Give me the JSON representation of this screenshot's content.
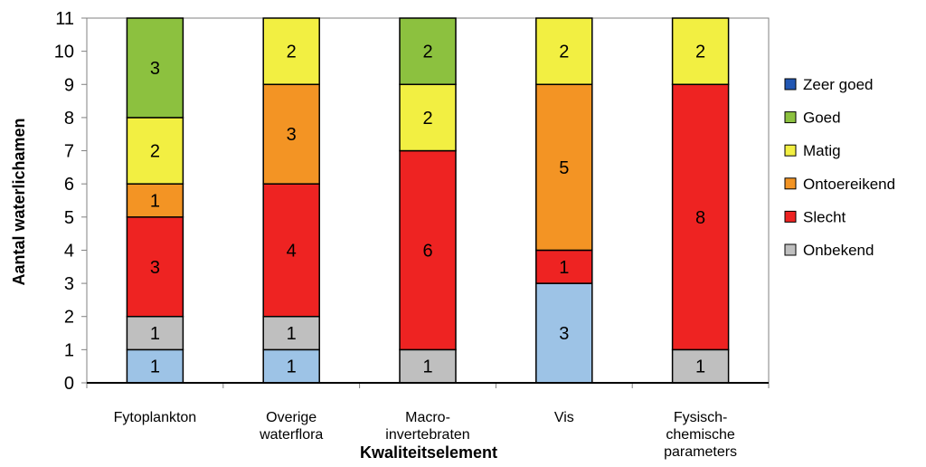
{
  "chart_data": {
    "type": "bar",
    "stacked": true,
    "xlabel": "Kwaliteitselement",
    "ylabel": "Aantal waterlichamen",
    "ylim": [
      0,
      11
    ],
    "yticks": [
      "0",
      "1",
      "2",
      "3",
      "4",
      "5",
      "6",
      "7",
      "8",
      "9",
      "10",
      "11"
    ],
    "categories": [
      [
        "Fytoplankton"
      ],
      [
        "Overige",
        "waterflora"
      ],
      [
        "Macro-",
        "invertebraten"
      ],
      [
        "Vis"
      ],
      [
        "Fysisch-",
        "chemische",
        "parameters"
      ]
    ],
    "stack_order": [
      "Onbekend-blue",
      "Onbekend",
      "Slecht",
      "Ontoereikend",
      "Matig",
      "Goed",
      "Zeer goed"
    ],
    "series": [
      {
        "key": "Onbekend-blue",
        "color": "#9dc3e6",
        "values": [
          1,
          1,
          0,
          3,
          0
        ]
      },
      {
        "key": "Onbekend",
        "name": "Onbekend",
        "color": "#bfbfbf",
        "values": [
          1,
          1,
          1,
          0,
          1
        ]
      },
      {
        "key": "Slecht",
        "name": "Slecht",
        "color": "#ee2322",
        "values": [
          3,
          4,
          6,
          1,
          8
        ]
      },
      {
        "key": "Ontoereikend",
        "name": "Ontoereikend",
        "color": "#f39424",
        "values": [
          1,
          3,
          0,
          5,
          0
        ]
      },
      {
        "key": "Matig",
        "name": "Matig",
        "color": "#f2ef42",
        "values": [
          2,
          2,
          2,
          2,
          2
        ]
      },
      {
        "key": "Goed",
        "name": "Goed",
        "color": "#8cc13f",
        "values": [
          3,
          0,
          2,
          0,
          0
        ]
      },
      {
        "key": "Zeer goed",
        "name": "Zeer goed",
        "color": "#2257b3",
        "values": [
          0,
          0,
          0,
          0,
          0
        ]
      }
    ],
    "legend_order": [
      "Zeer goed",
      "Goed",
      "Matig",
      "Ontoereikend",
      "Slecht",
      "Onbekend"
    ],
    "legend_position": "right",
    "grid": false
  }
}
